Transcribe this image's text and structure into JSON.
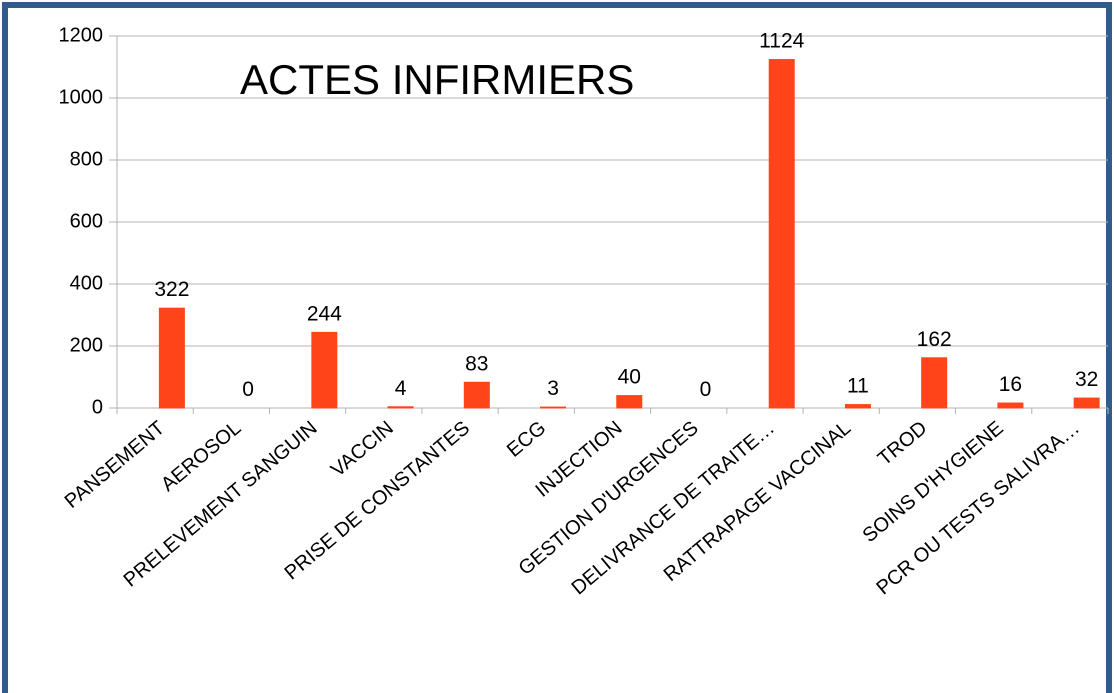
{
  "chart_data": {
    "type": "bar",
    "title": "ACTES INFIRMIERS",
    "categories": [
      "PANSEMENT",
      "AEROSOL",
      "PRELEVEMENT SANGUIN",
      "VACCIN",
      "PRISE DE CONSTANTES",
      "ECG",
      "INJECTION",
      "GESTION D'URGENCES",
      "DELIVRANCE DE TRAITE…",
      "RATTRAPAGE VACCINAL",
      "TROD",
      "SOINS D'HYGIENE",
      "PCR OU TESTS SALIVRA…"
    ],
    "values": [
      322,
      0,
      244,
      4,
      83,
      3,
      40,
      0,
      1124,
      11,
      162,
      16,
      32
    ],
    "color": "#ff4419",
    "ylim": [
      0,
      1200
    ],
    "yticks": [
      0,
      200,
      400,
      600,
      800,
      1000,
      1200
    ],
    "grid": true
  }
}
